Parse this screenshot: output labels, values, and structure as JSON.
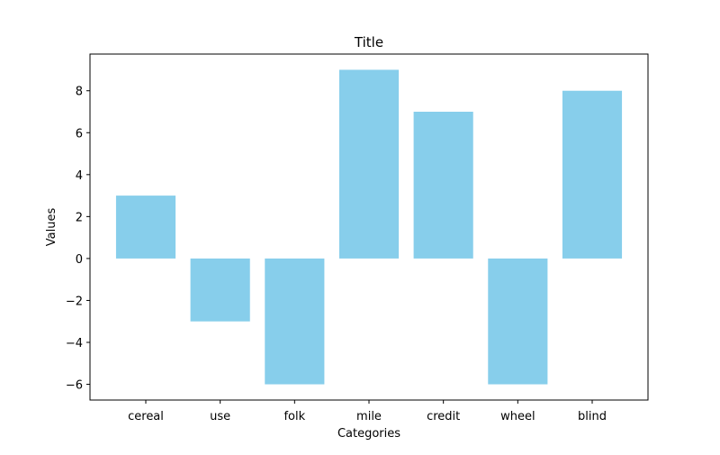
{
  "chart_data": {
    "type": "bar",
    "title": "Title",
    "xlabel": "Categories",
    "ylabel": "Values",
    "categories": [
      "cereal",
      "use",
      "folk",
      "mile",
      "credit",
      "wheel",
      "blind"
    ],
    "values": [
      3,
      -3,
      -6,
      9,
      7,
      -6,
      8
    ],
    "ylim": [
      -6.75,
      9.75
    ],
    "yticks": [
      -6,
      -4,
      -2,
      0,
      2,
      4,
      6,
      8
    ],
    "ytick_labels": [
      "−6",
      "−4",
      "−2",
      "0",
      "2",
      "4",
      "6",
      "8"
    ],
    "bar_color": "#87CEEB",
    "grid": false,
    "legend": "none"
  }
}
